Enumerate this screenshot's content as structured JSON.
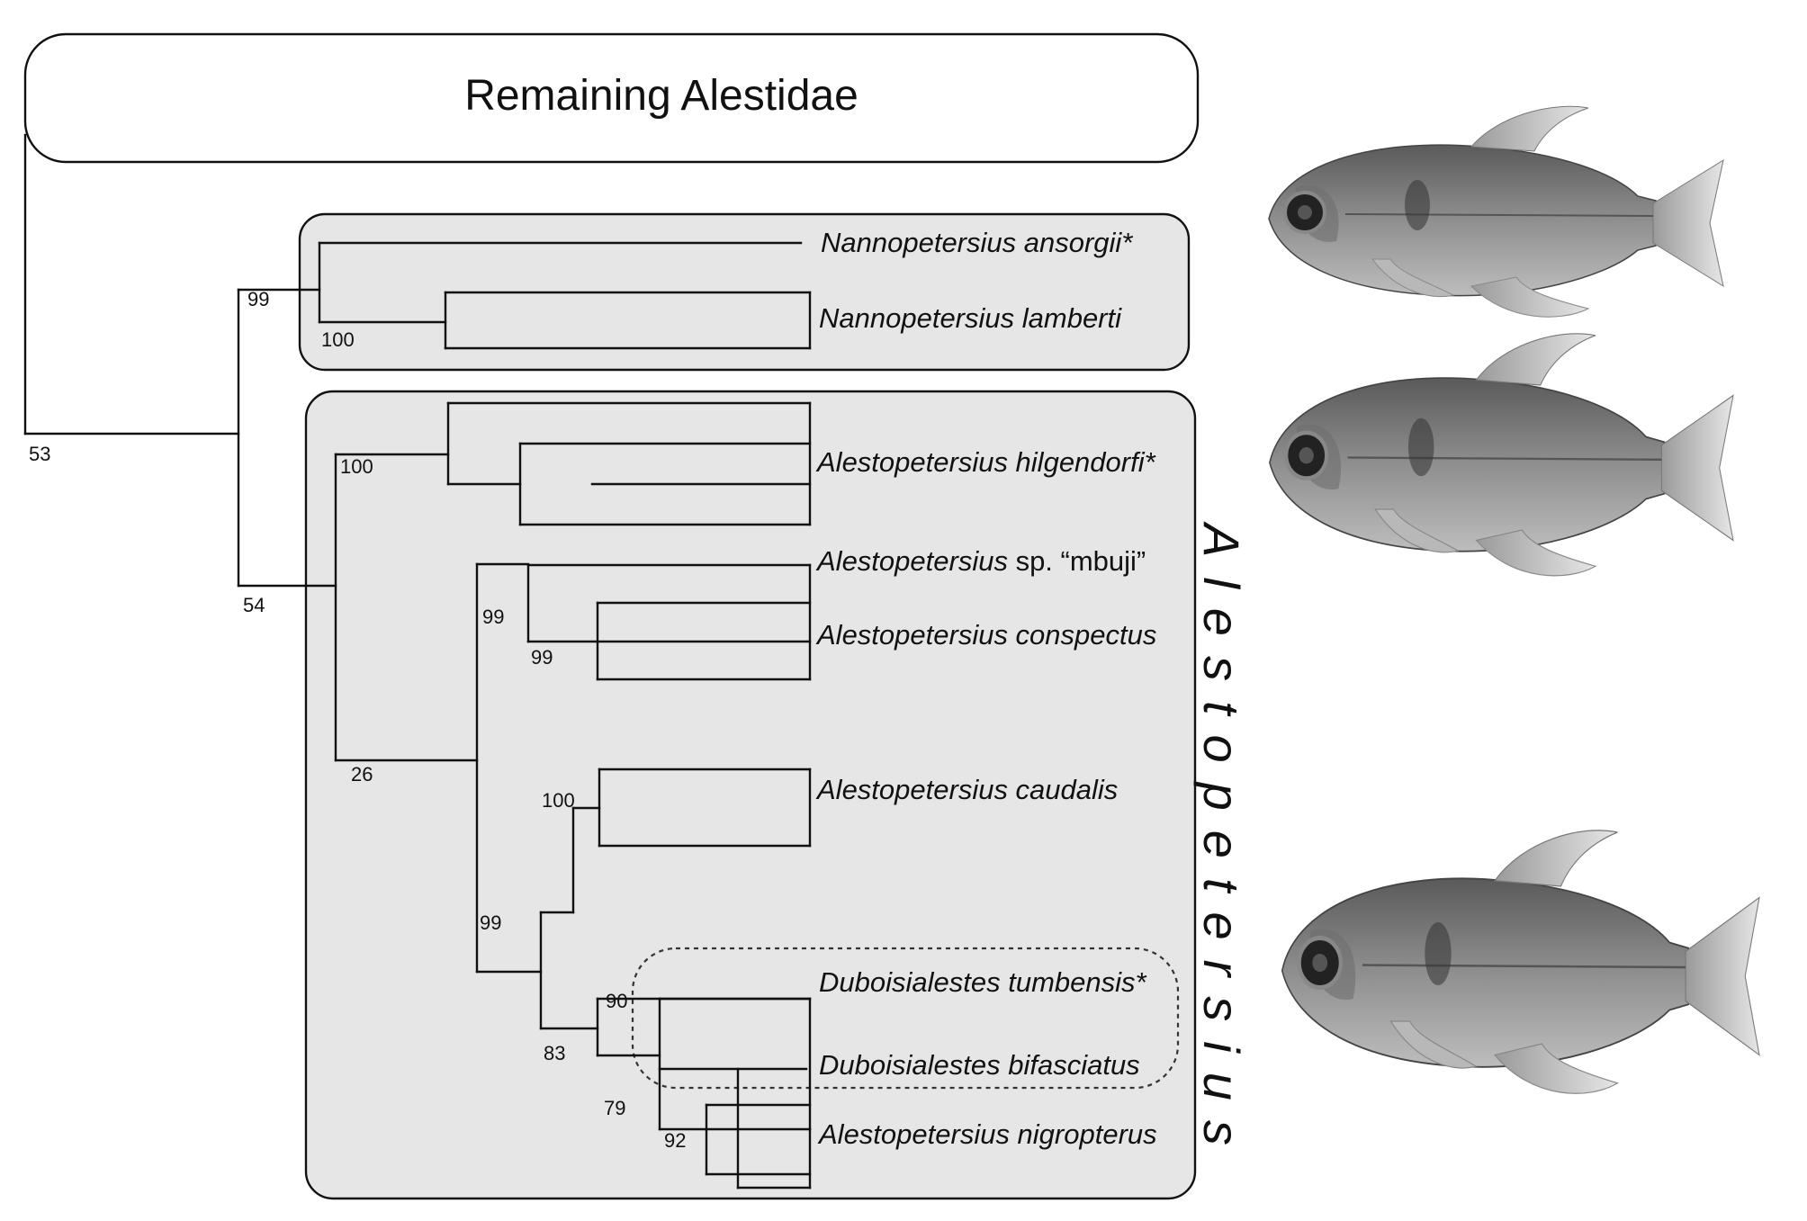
{
  "outgroup_box": {
    "label": "Remaining Alestidae"
  },
  "genus_label": "Alestopetersius",
  "taxa": [
    {
      "parts": [
        {
          "text": "Nannopetersius ansorgii*",
          "italic": true
        }
      ]
    },
    {
      "parts": [
        {
          "text": "Nannopetersius lamberti",
          "italic": true
        }
      ]
    },
    {
      "parts": [
        {
          "text": "Alestopetersius hilgendorfi*",
          "italic": true
        }
      ]
    },
    {
      "parts": [
        {
          "text": "Alestopetersius",
          "italic": true
        },
        {
          "text": " sp. “mbuji”",
          "italic": false
        }
      ]
    },
    {
      "parts": [
        {
          "text": "Alestopetersius conspectus",
          "italic": true
        }
      ]
    },
    {
      "parts": [
        {
          "text": "Alestopetersius caudalis",
          "italic": true
        }
      ]
    },
    {
      "parts": [
        {
          "text": "Duboisialestes tumbensis*",
          "italic": true
        }
      ]
    },
    {
      "parts": [
        {
          "text": "Duboisialestes bifasciatus",
          "italic": true
        }
      ]
    },
    {
      "parts": [
        {
          "text": "Alestopetersius nigropterus",
          "italic": true
        }
      ]
    }
  ],
  "support_values": [
    "53",
    "99",
    "100",
    "54",
    "100",
    "99",
    "99",
    "26",
    "100",
    "99",
    "90",
    "83",
    "79",
    "92"
  ],
  "photos": [
    {
      "subject": "fish-specimen"
    },
    {
      "subject": "fish-specimen"
    },
    {
      "subject": "fish-specimen"
    }
  ]
}
